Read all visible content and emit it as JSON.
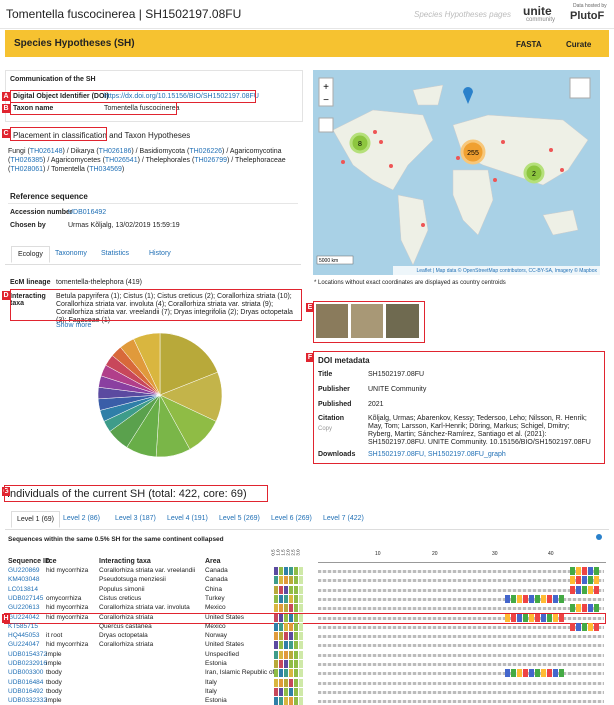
{
  "header": {
    "title": "Tomentella fuscocinerea | SH1502197.08FU",
    "pages_label": "Species Hypotheses pages",
    "unite_logo": "unite",
    "unite_sub": "community",
    "plutof_hosted": "Data hosted by",
    "plutof_logo": "PlutoF"
  },
  "toolbar": {
    "title": "Species Hypotheses (SH)",
    "fasta": "FASTA",
    "curate": "Curate"
  },
  "communication": {
    "heading": "Communication of the SH",
    "doi_label": "Digital Object Identifier (DOI)",
    "doi": "https://dx.doi.org/10.15156/BIO/SH1502197.08FU",
    "taxon_label": "Taxon name",
    "taxon": "Tomentella fuscocinerea"
  },
  "placement": {
    "heading_a": "Placement in classification",
    "heading_b": "and Taxon Hypotheses",
    "segments": [
      "Fungi (",
      "TH026148",
      ") / Dikarya (",
      "TH026186",
      ") / Basidiomycota (",
      "TH026226",
      ") / Agaricomycotina (",
      "TH026385",
      ") / Agaricomycetes (",
      "TH026541",
      ") / Thelephorales (",
      "TH026799",
      ") / Thelephoraceae (",
      "TH028061",
      ") / Tomentella (",
      "TH034569",
      ")"
    ]
  },
  "reference": {
    "heading": "Reference sequence",
    "accession_label": "Accession number",
    "accession": "UDB016492",
    "chosen_label": "Chosen by",
    "chosen": "Urmas Kõljalg, 13/02/2019 15:59:19"
  },
  "tabs": [
    "Ecology",
    "Taxonomy",
    "Statistics",
    "History"
  ],
  "ecology": {
    "ecm_label": "EcM lineage",
    "ecm": "tomentella-thelephora (419)",
    "interacting_label": "Interacting taxa",
    "interacting": "Betula papyrifera (1); Cistus (1); Cistus creticus (2); Corallorhiza striata (10); Corallorhiza striata var. involuta (4); Corallorhiza striata var. striata (9); Corallorhiza striata var. vreelandii (7); Dryas integrifolia (2); Dryas octopetala (3); Fagaceae (1)",
    "show_more": "Show more"
  },
  "map": {
    "zoom_in": "+",
    "zoom_out": "−",
    "clusters": [
      "8",
      "255",
      "2"
    ],
    "scale": "5000 km",
    "attribution": "Leaflet | Map data © OpenStreetMap contributors, CC-BY-SA, Imagery © Mapbox",
    "caption": "* Locations without exact coordinates are displayed as country centroids"
  },
  "doi_metadata": {
    "heading": "DOI metadata",
    "rows": [
      [
        "Title",
        "SH1502197.08FU"
      ],
      [
        "Publisher",
        "UNITE Community"
      ],
      [
        "Published",
        "2021"
      ],
      [
        "Citation",
        "Kõljalg, Urmas; Abarenkov, Kessy; Tedersoo, Leho; Nilsson, R. Henrik; May, Tom; Larsson, Karl-Henrik; Döring, Markus; Schigel, Dmitry; Ryberg, Martin; Sánchez-Ramírez, Santiago et al. (2021): SH1502197.08FU. UNITE Community. 10.15156/BIO/SH1502197.08FU"
      ],
      [
        "Downloads",
        "SH1502197.08FU, SH1502197.08FU_graph"
      ]
    ],
    "citation_copy": "Copy"
  },
  "individuals": {
    "heading": "Individuals of the current SH (total: 422, core: 69)",
    "levels": [
      "Level 1 (69)",
      "Level 2 (86)",
      "Level 3 (187)",
      "Level 4 (191)",
      "Level 5 (269)",
      "Level 6 (269)",
      "Level 7 (422)"
    ],
    "note": "Sequences within the same 0.5% SH for the same continent collapsed",
    "columns": [
      "Sequence ID",
      "rce",
      "Interacting taxa",
      "Area"
    ],
    "thresholds": [
      "0.5",
      "1.0",
      "1.5",
      "2.0",
      "2.5",
      "3.0"
    ],
    "ruler": [
      "10",
      "20",
      "30",
      "40"
    ],
    "rows": [
      [
        "GU220869",
        "hid mycorrhiza",
        "Corallorhiza striata var. vreelandii",
        "Canada"
      ],
      [
        "KM403048",
        "",
        "Pseudotsuga menziesii",
        "Canada"
      ],
      [
        "LC013814",
        "",
        "Populus simonii",
        "China"
      ],
      [
        "UDB027145",
        "omycorrhiza",
        "Cistus creticus",
        "Turkey"
      ],
      [
        "GU220613",
        "hid mycorrhiza",
        "Corallorhiza striata var. involuta",
        "Mexico"
      ],
      [
        "GU224042",
        "hid mycorrhiza",
        "Corallorhiza striata",
        "United States"
      ],
      [
        "KT585715",
        "",
        "Quercus castanea",
        "Mexico"
      ],
      [
        "HQ445053",
        "it root",
        "Dryas octopetala",
        "Norway"
      ],
      [
        "GU224047",
        "hid mycorrhiza",
        "Corallorhiza striata",
        "United States"
      ],
      [
        "UDB0154372",
        "imple",
        "",
        "Unspecified"
      ],
      [
        "UDB0232916",
        "imple",
        "",
        "Estonia"
      ],
      [
        "UDB003300",
        "tbody",
        "",
        "Iran, Islamic Republic of"
      ],
      [
        "UDB016484",
        "tbody",
        "",
        "Italy"
      ],
      [
        "UDB016492",
        "tbody",
        "",
        "Italy"
      ],
      [
        "UDB0332332",
        "imple",
        "",
        "Estonia"
      ]
    ]
  },
  "labels": [
    "A",
    "B",
    "C",
    "D",
    "E",
    "F",
    "G",
    "H"
  ]
}
